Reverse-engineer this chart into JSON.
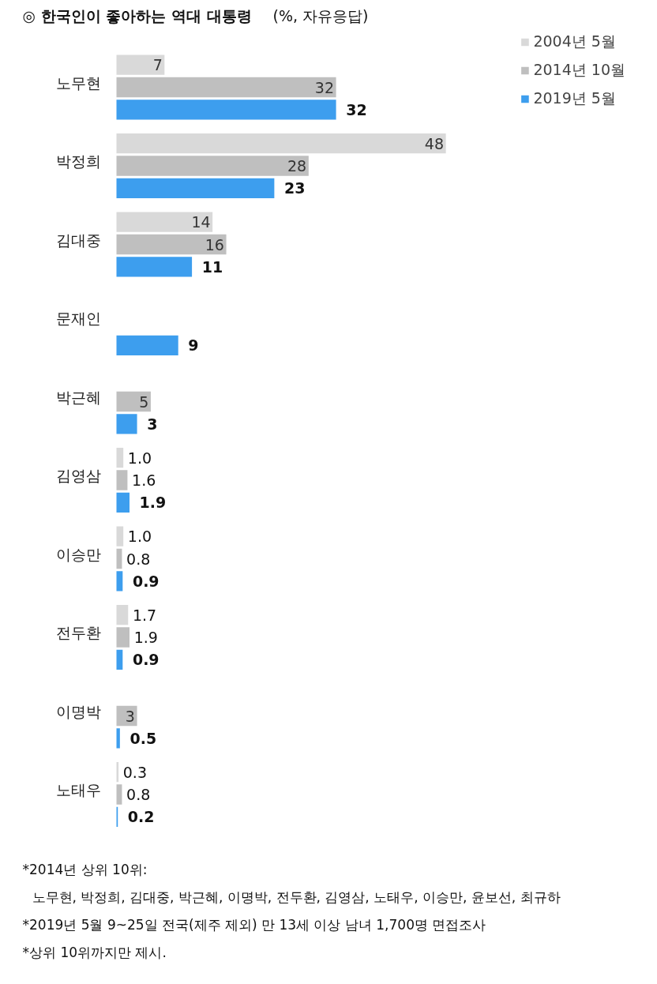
{
  "chart_data": {
    "type": "bar",
    "orientation": "horizontal",
    "title": "◎  한국인이 좋아하는 역대 대통령",
    "subtitle": "(%, 자유응답)",
    "categories": [
      "노무현",
      "박정희",
      "김대중",
      "문재인",
      "박근혜",
      "김영삼",
      "이승만",
      "전두환",
      "이명박",
      "노태우"
    ],
    "series": [
      {
        "name": "2004년 5월",
        "color": "#d9d9d9",
        "values": [
          7,
          48,
          14,
          null,
          null,
          1.0,
          1.0,
          1.7,
          null,
          0.3
        ],
        "value_labels": [
          "7",
          "48",
          "14",
          null,
          null,
          "1.0",
          "1.0",
          "1.7",
          null,
          "0.3"
        ]
      },
      {
        "name": "2014년 10월",
        "color": "#bfbfbf",
        "values": [
          32,
          28,
          16,
          null,
          5,
          1.6,
          0.8,
          1.9,
          3,
          0.8
        ],
        "value_labels": [
          "32",
          "28",
          "16",
          null,
          "5",
          "1.6",
          "0.8",
          "1.9",
          "3",
          "0.8"
        ]
      },
      {
        "name": "2019년 5월",
        "color": "#3d9eee",
        "values": [
          32,
          23,
          11,
          9,
          3,
          1.9,
          0.9,
          0.9,
          0.5,
          0.2
        ],
        "value_labels": [
          "32",
          "23",
          "11",
          "9",
          "3",
          "1.9",
          "0.9",
          "0.9",
          "0.5",
          "0.2"
        ]
      }
    ],
    "legend": "top right",
    "annotations": [
      "*2014년 상위 10위:",
      "노무현, 박정희, 김대중, 박근혜, 이명박, 전두환, 김영삼, 노태우, 이승만, 윤보선, 최규하",
      "*2019년 5월 9~25일 전국(제주 제외) 만 13세 이상 남녀 1,700명 면접조사",
      "*상위 10위까지만 제시."
    ]
  }
}
